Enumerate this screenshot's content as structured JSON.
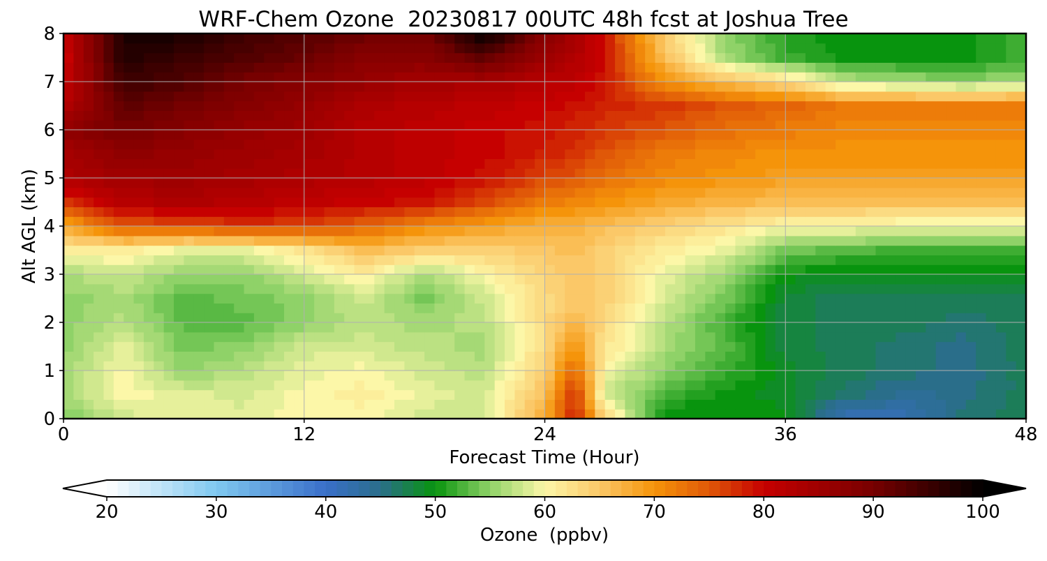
{
  "chart_data": {
    "type": "heatmap",
    "title": "WRF-Chem Ozone  20230817 00UTC 48h fcst at Joshua Tree",
    "xlabel": "Forecast Time (Hour)",
    "ylabel": "Alt AGL (km)",
    "xlim": [
      0,
      48
    ],
    "ylim": [
      0,
      8
    ],
    "xticks": [
      0,
      12,
      24,
      36,
      48
    ],
    "yticks": [
      0,
      1,
      2,
      3,
      4,
      5,
      6,
      7,
      8
    ],
    "grid": true,
    "colorbar": {
      "label": "Ozone  (ppbv)",
      "min": 20,
      "max": 100,
      "ticks": [
        20,
        30,
        40,
        50,
        60,
        70,
        80,
        90,
        100
      ],
      "extend": "both",
      "orientation": "horizontal",
      "colors": [
        {
          "v": 20,
          "c": "#ffffff"
        },
        {
          "v": 30,
          "c": "#7fc8f0"
        },
        {
          "v": 40,
          "c": "#3a6fc9"
        },
        {
          "v": 45,
          "c": "#2a6e8a"
        },
        {
          "v": 50,
          "c": "#08940e"
        },
        {
          "v": 55,
          "c": "#8fd268"
        },
        {
          "v": 60,
          "c": "#fcf7a8"
        },
        {
          "v": 65,
          "c": "#fbc868"
        },
        {
          "v": 70,
          "c": "#f5940a"
        },
        {
          "v": 75,
          "c": "#e05808"
        },
        {
          "v": 80,
          "c": "#c60000"
        },
        {
          "v": 90,
          "c": "#770000"
        },
        {
          "v": 100,
          "c": "#000000"
        }
      ]
    },
    "x": [
      0,
      3,
      6,
      9,
      12,
      15,
      18,
      21,
      24,
      25.5,
      27,
      30,
      33,
      36,
      39,
      42,
      45,
      48
    ],
    "y": [
      0,
      0.5,
      1,
      1.5,
      2,
      2.5,
      3,
      3.5,
      4,
      4.5,
      5,
      5.5,
      6,
      6.5,
      7,
      7.5,
      8
    ],
    "z": [
      [
        54,
        58,
        59,
        59,
        60,
        60,
        58,
        58,
        68,
        79,
        64,
        49,
        50,
        50,
        41,
        42,
        46,
        47
      ],
      [
        56,
        60,
        59,
        58,
        60,
        61,
        59,
        58,
        66,
        78,
        58,
        52,
        50,
        49,
        46,
        44,
        45,
        47
      ],
      [
        56,
        60,
        55,
        57,
        59,
        60,
        58,
        57,
        64,
        74,
        60,
        55,
        52,
        49,
        47,
        46,
        45,
        47
      ],
      [
        55,
        59,
        54,
        55,
        58,
        58,
        57,
        56,
        63,
        70,
        62,
        56,
        53,
        48,
        47,
        46,
        45,
        47
      ],
      [
        55,
        57,
        53,
        53,
        55,
        57,
        56,
        57,
        63,
        67,
        63,
        57,
        52,
        48,
        47,
        47,
        46,
        47
      ],
      [
        55,
        56,
        53,
        54,
        55,
        58,
        54,
        58,
        63,
        65,
        64,
        58,
        54,
        48,
        47,
        47,
        47,
        47
      ],
      [
        56,
        58,
        55,
        55,
        58,
        61,
        56,
        60,
        64,
        65,
        64,
        59,
        56,
        50,
        49,
        49,
        49,
        49
      ],
      [
        61,
        61,
        59,
        59,
        62,
        66,
        64,
        64,
        65,
        66,
        64,
        61,
        59,
        54,
        53,
        52,
        52,
        52
      ],
      [
        68,
        75,
        75,
        77,
        76,
        74,
        71,
        69,
        67,
        67,
        66,
        64,
        62,
        60,
        60,
        59,
        59,
        59
      ],
      [
        77,
        82,
        83,
        82,
        81,
        80,
        79,
        76,
        72,
        71,
        70,
        68,
        67,
        66,
        66,
        66,
        66,
        66
      ],
      [
        83,
        85,
        85,
        84,
        83,
        82,
        81,
        79,
        76,
        75,
        73,
        71,
        70,
        69,
        69,
        69,
        69,
        69
      ],
      [
        84,
        87,
        86,
        85,
        84,
        82,
        81,
        80,
        78,
        77,
        75,
        72,
        71,
        70,
        70,
        70,
        70,
        70
      ],
      [
        87,
        90,
        88,
        86,
        85,
        82,
        81,
        80,
        79,
        78,
        77,
        75,
        73,
        72,
        71,
        71,
        71,
        71
      ],
      [
        82,
        92,
        90,
        88,
        86,
        83,
        82,
        81,
        80,
        79,
        78,
        77,
        75,
        74,
        72,
        72,
        72,
        72
      ],
      [
        80,
        95,
        93,
        90,
        88,
        86,
        84,
        84,
        82,
        81,
        79,
        70,
        66,
        63,
        57,
        56,
        55,
        56
      ],
      [
        79,
        97,
        95,
        93,
        91,
        88,
        88,
        92,
        85,
        83,
        79,
        66,
        56,
        52,
        50,
        50,
        50,
        52
      ],
      [
        80,
        98,
        98,
        95,
        93,
        91,
        90,
        100,
        88,
        84,
        79,
        64,
        55,
        51,
        50,
        50,
        50,
        52
      ]
    ]
  }
}
